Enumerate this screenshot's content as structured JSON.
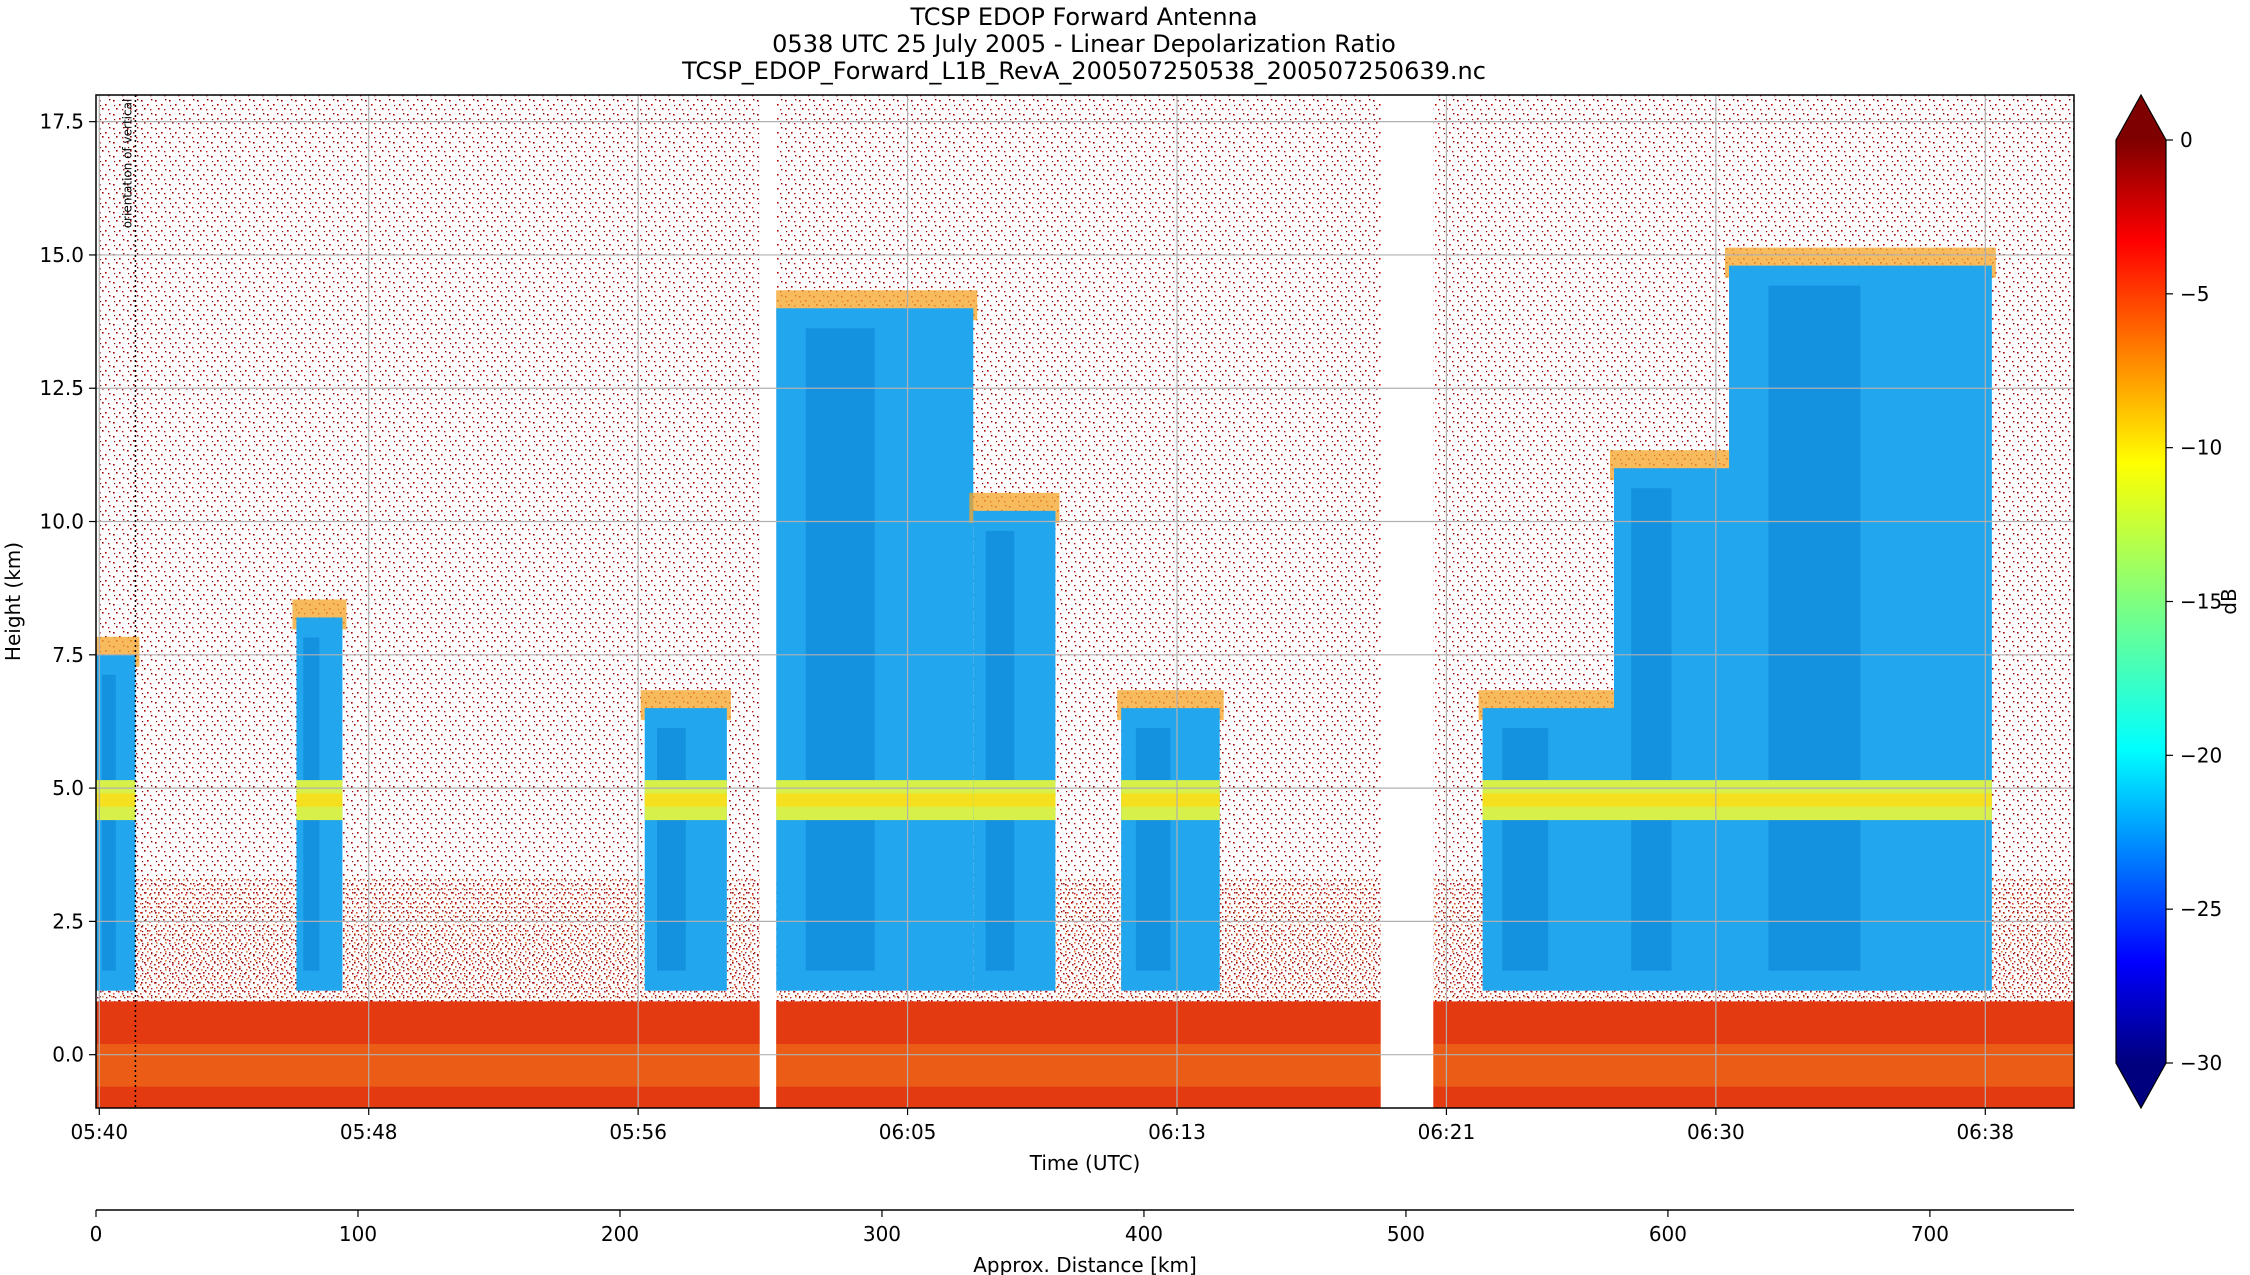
{
  "figure": {
    "title_lines": [
      "TCSP EDOP Forward Antenna",
      "0538 UTC 25 July 2005 - Linear Depolarization Ratio",
      "TCSP_EDOP_Forward_L1B_RevA_200507250538_200507250639.nc"
    ]
  },
  "chart_data": {
    "type": "heatmap",
    "title": "TCSP EDOP Forward Antenna",
    "xlabel": "Time (UTC)",
    "ylabel": "Height (km)",
    "x_ticks": [
      "05:40",
      "05:48",
      "05:56",
      "06:05",
      "06:13",
      "06:21",
      "06:30",
      "06:38"
    ],
    "x_tick_minutes": [
      39.9,
      48.1,
      56.3,
      64.5,
      72.7,
      80.9,
      89.1,
      97.3
    ],
    "x_range_minutes": [
      39.8,
      100.0
    ],
    "y_ticks": [
      0.0,
      2.5,
      5.0,
      7.5,
      10.0,
      12.5,
      15.0,
      17.5
    ],
    "y_tick_labels": [
      "0.0",
      "2.5",
      "5.0",
      "7.5",
      "10.0",
      "12.5",
      "15.0",
      "17.5"
    ],
    "ylim": [
      -1.0,
      18.0
    ],
    "grid": true,
    "vertical_annotation": "orientation of vertical",
    "data_gaps_minutes": [
      [
        60.0,
        60.5
      ],
      [
        78.9,
        80.5
      ]
    ],
    "secondary_x_axis": {
      "label": "Approx. Distance [km]",
      "ticks": [
        0,
        100,
        200,
        300,
        400,
        500,
        600,
        700
      ],
      "range": [
        0,
        755
      ]
    },
    "colorbar": {
      "label": "dB",
      "ticks": [
        0,
        -5,
        -10,
        -15,
        -20,
        -25,
        -30
      ],
      "range": [
        -30,
        0
      ],
      "colormap": "jet",
      "extend": "both"
    },
    "features": {
      "melting_layer_km": 4.8,
      "surface_clutter_top_km": 1.0,
      "convective_columns": [
        {
          "start_min": 39.8,
          "end_min": 41.0,
          "top_km": 7.5
        },
        {
          "start_min": 45.9,
          "end_min": 47.3,
          "top_km": 8.2
        },
        {
          "start_min": 56.5,
          "end_min": 59.0,
          "top_km": 6.5
        },
        {
          "start_min": 60.5,
          "end_min": 66.5,
          "top_km": 14.0
        },
        {
          "start_min": 66.5,
          "end_min": 69.0,
          "top_km": 10.2
        },
        {
          "start_min": 71.0,
          "end_min": 74.0,
          "top_km": 6.5
        },
        {
          "start_min": 82.0,
          "end_min": 86.0,
          "top_km": 6.5
        },
        {
          "start_min": 86.0,
          "end_min": 89.5,
          "top_km": 11.0
        },
        {
          "start_min": 89.5,
          "end_min": 97.5,
          "top_km": 14.8
        }
      ]
    }
  }
}
